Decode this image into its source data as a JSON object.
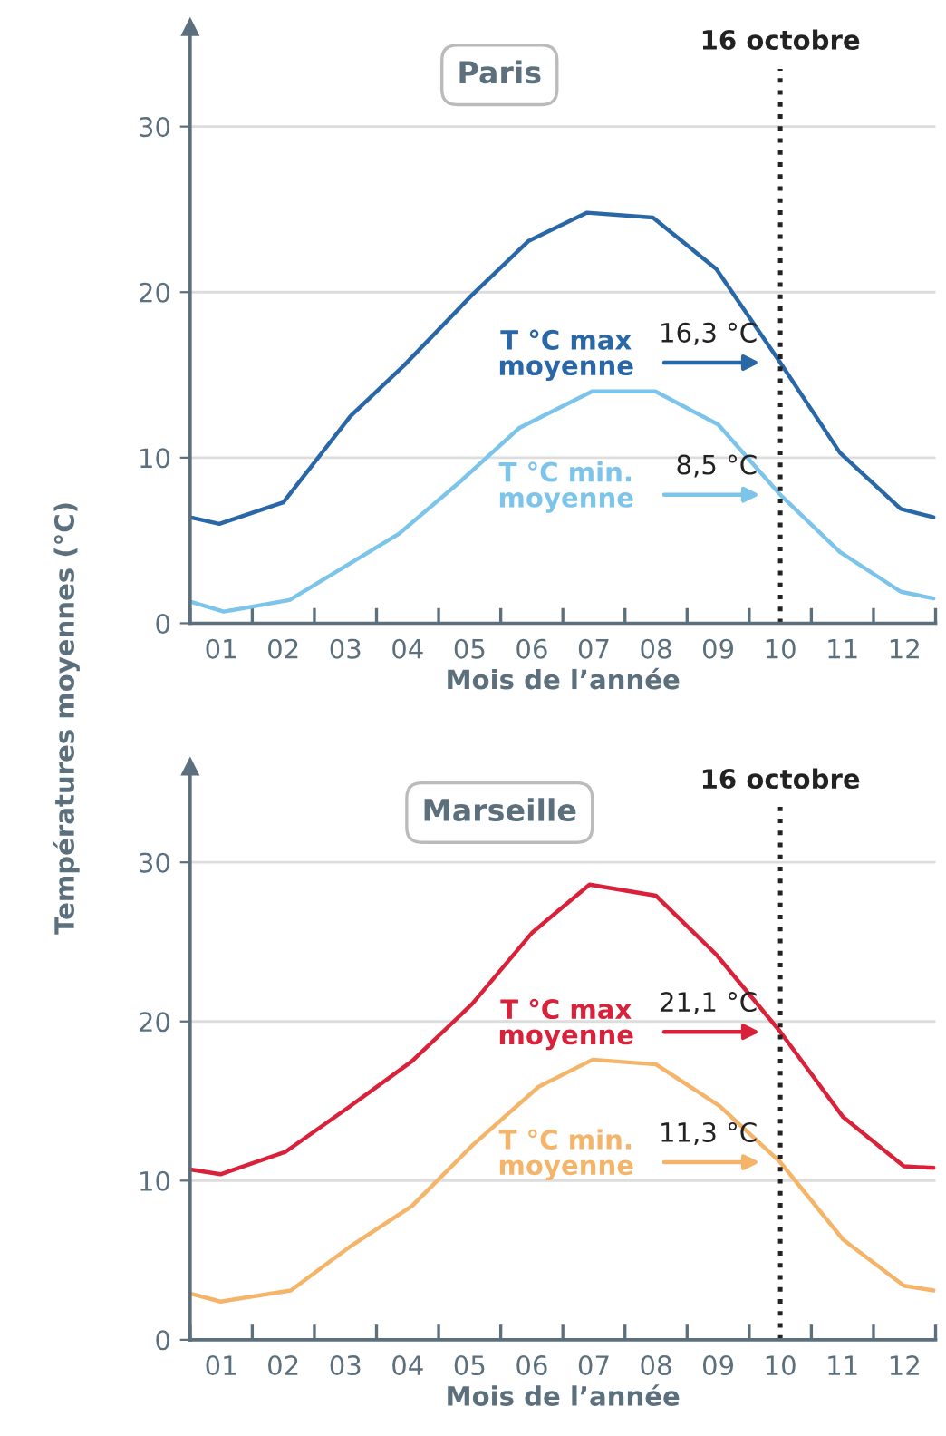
{
  "chart_data": [
    {
      "type": "line",
      "title": "Paris",
      "ylabel": "Températures moyennes (°C)",
      "xlabel": "Mois de l’année",
      "xlim": [
        0,
        12
      ],
      "ylim": [
        0,
        36
      ],
      "yticks": [
        0,
        10,
        20,
        30
      ],
      "xticks": [
        {
          "value": 0,
          "label": null
        },
        {
          "value": 0.5,
          "label": "01"
        },
        {
          "value": 1,
          "label": null
        },
        {
          "value": 1.5,
          "label": "02"
        },
        {
          "value": 2,
          "label": null
        },
        {
          "value": 2.5,
          "label": "03"
        },
        {
          "value": 3,
          "label": null
        },
        {
          "value": 3.5,
          "label": "04"
        },
        {
          "value": 4,
          "label": null
        },
        {
          "value": 4.5,
          "label": "05"
        },
        {
          "value": 5,
          "label": null
        },
        {
          "value": 5.5,
          "label": "06"
        },
        {
          "value": 6,
          "label": null
        },
        {
          "value": 6.5,
          "label": "07"
        },
        {
          "value": 7,
          "label": null
        },
        {
          "value": 7.5,
          "label": "08"
        },
        {
          "value": 8,
          "label": null
        },
        {
          "value": 8.5,
          "label": "09"
        },
        {
          "value": 9,
          "label": null
        },
        {
          "value": 9.5,
          "label": "10"
        },
        {
          "value": 10,
          "label": null
        },
        {
          "value": 10.5,
          "label": "11"
        },
        {
          "value": 11,
          "label": null
        },
        {
          "value": 11.5,
          "label": "12"
        },
        {
          "value": 12,
          "label": null
        }
      ],
      "grid": "y",
      "marker": "none",
      "line_style": "solid",
      "legend": "center right",
      "series": [
        {
          "name": "T °C max\nmoyenne",
          "color": "#2a67a6",
          "x": [
            0,
            0.47,
            1.5,
            2.58,
            3.45,
            4.53,
            5.45,
            6.39,
            7.45,
            8.47,
            9.49,
            10.46,
            11.44,
            11.97
          ],
          "values": [
            6.4,
            6.0,
            7.3,
            12.5,
            15.6,
            19.8,
            23.1,
            24.8,
            24.5,
            21.4,
            15.8,
            10.3,
            6.9,
            6.4
          ]
        },
        {
          "name": "T °C min.\nmoyenne",
          "color": "#7cc4ea",
          "x": [
            0,
            0.54,
            1.6,
            2.48,
            3.36,
            4.33,
            5.3,
            6.47,
            7.49,
            8.5,
            9.49,
            10.46,
            11.44,
            11.97
          ],
          "values": [
            1.3,
            0.7,
            1.4,
            3.4,
            5.4,
            8.5,
            11.8,
            14.0,
            14.0,
            12.0,
            7.8,
            4.3,
            1.9,
            1.5
          ]
        }
      ],
      "ref_lines": [
        {
          "axis": "x",
          "value": 9.5,
          "label": "16 octobre",
          "color": "#222222",
          "line_style": "dotted"
        }
      ],
      "annotations": [
        "16,3 °C",
        "8,5 °C"
      ]
    },
    {
      "type": "line",
      "title": "Marseille",
      "xlabel": "Mois de l’année",
      "xlim": [
        0,
        12
      ],
      "ylim": [
        0,
        36
      ],
      "yticks": [
        0,
        10,
        20,
        30
      ],
      "xticks": [
        {
          "value": 0,
          "label": null
        },
        {
          "value": 0.5,
          "label": "01"
        },
        {
          "value": 1,
          "label": null
        },
        {
          "value": 1.5,
          "label": "02"
        },
        {
          "value": 2,
          "label": null
        },
        {
          "value": 2.5,
          "label": "03"
        },
        {
          "value": 3,
          "label": null
        },
        {
          "value": 3.5,
          "label": "04"
        },
        {
          "value": 4,
          "label": null
        },
        {
          "value": 4.5,
          "label": "05"
        },
        {
          "value": 5,
          "label": null
        },
        {
          "value": 5.5,
          "label": "06"
        },
        {
          "value": 6,
          "label": null
        },
        {
          "value": 6.5,
          "label": "07"
        },
        {
          "value": 7,
          "label": null
        },
        {
          "value": 7.5,
          "label": "08"
        },
        {
          "value": 8,
          "label": null
        },
        {
          "value": 8.5,
          "label": "09"
        },
        {
          "value": 9,
          "label": null
        },
        {
          "value": 9.5,
          "label": "10"
        },
        {
          "value": 10,
          "label": null
        },
        {
          "value": 10.5,
          "label": "11"
        },
        {
          "value": 11,
          "label": null
        },
        {
          "value": 11.5,
          "label": "12"
        },
        {
          "value": 12,
          "label": null
        }
      ],
      "grid": "y",
      "marker": "none",
      "line_style": "solid",
      "legend": "center right",
      "series": [
        {
          "name": "T °C max\nmoyenne",
          "color": "#d9213a",
          "x": [
            0,
            0.49,
            1.53,
            2.55,
            3.57,
            4.54,
            5.51,
            6.43,
            7.5,
            8.47,
            9.49,
            10.51,
            11.49,
            11.97
          ],
          "values": [
            10.7,
            10.4,
            11.8,
            14.6,
            17.5,
            21.1,
            25.6,
            28.6,
            27.9,
            24.2,
            19.4,
            14.0,
            10.9,
            10.8
          ]
        },
        {
          "name": "T °C min.\nmoyenne",
          "color": "#f4b56a",
          "x": [
            0,
            0.49,
            1.62,
            2.59,
            3.57,
            4.54,
            5.61,
            6.48,
            7.5,
            8.52,
            9.49,
            10.51,
            11.49,
            11.97
          ],
          "values": [
            2.9,
            2.4,
            3.1,
            5.9,
            8.4,
            12.2,
            15.9,
            17.6,
            17.3,
            14.7,
            11.2,
            6.3,
            3.4,
            3.1
          ]
        }
      ],
      "ref_lines": [
        {
          "axis": "x",
          "value": 9.5,
          "label": "16 octobre",
          "color": "#222222",
          "line_style": "dotted"
        }
      ],
      "annotations": [
        "21,1 °C",
        "11,3 °C"
      ]
    }
  ]
}
